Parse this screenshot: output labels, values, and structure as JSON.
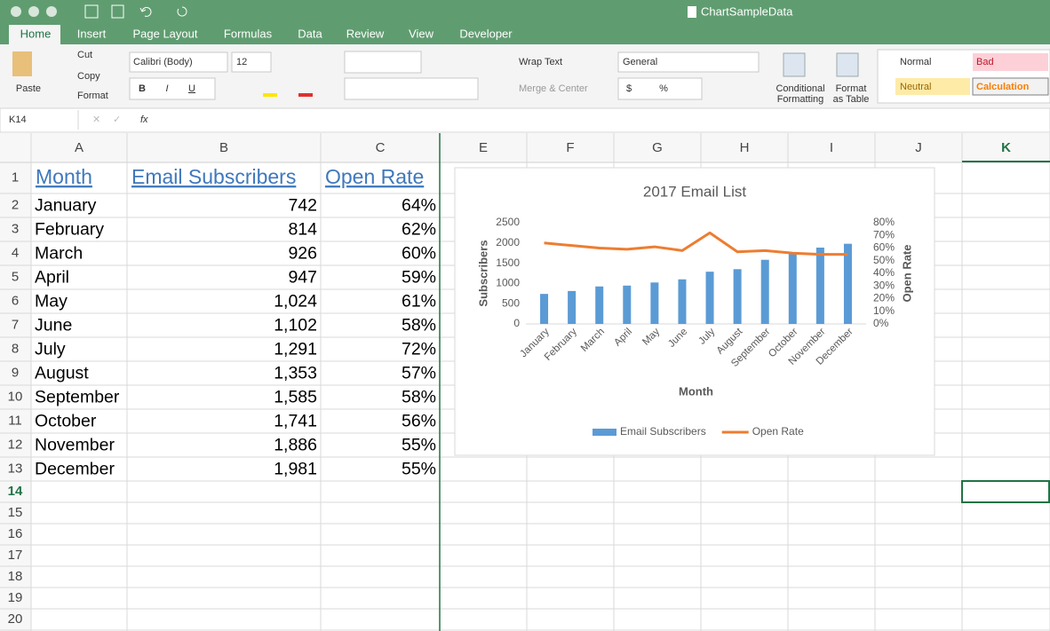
{
  "window": {
    "title": "ChartSampleData"
  },
  "tabs": [
    "Home",
    "Insert",
    "Page Layout",
    "Formulas",
    "Data",
    "Review",
    "View",
    "Developer"
  ],
  "ribbon": {
    "paste": "Paste",
    "cut": "Cut",
    "copy": "Copy",
    "format": "Format",
    "font": "Calibri (Body)",
    "font_size": "12",
    "bold": "B",
    "italic": "I",
    "underline": "U",
    "wrap_text": "Wrap Text",
    "merge_center": "Merge & Center",
    "number_format": "General",
    "currency": "$",
    "percent": "%",
    "conditional_formatting": [
      "Conditional",
      "Formatting"
    ],
    "format_as_table": [
      "Format",
      "as Table"
    ],
    "styles": [
      "Normal",
      "Bad",
      "Neutral",
      "Calculation"
    ]
  },
  "formula_bar": {
    "name_box": "K14",
    "fx": "fx"
  },
  "columns": [
    "A",
    "B",
    "C",
    "E",
    "F",
    "G",
    "H",
    "I",
    "J",
    "K"
  ],
  "rows": [
    1,
    2,
    3,
    4,
    5,
    6,
    7,
    8,
    9,
    10,
    11,
    12,
    13,
    14,
    15,
    16,
    17,
    18,
    19,
    20
  ],
  "table": {
    "header": [
      "Month",
      "Email Subscribers",
      "Open Rate"
    ],
    "rows": [
      [
        "January",
        "742",
        "64%"
      ],
      [
        "February",
        "814",
        "62%"
      ],
      [
        "March",
        "926",
        "60%"
      ],
      [
        "April",
        "947",
        "59%"
      ],
      [
        "May",
        "1,024",
        "61%"
      ],
      [
        "June",
        "1,102",
        "58%"
      ],
      [
        "July",
        "1,291",
        "72%"
      ],
      [
        "August",
        "1,353",
        "57%"
      ],
      [
        "September",
        "1,585",
        "58%"
      ],
      [
        "October",
        "1,741",
        "56%"
      ],
      [
        "November",
        "1,886",
        "55%"
      ],
      [
        "December",
        "1,981",
        "55%"
      ]
    ]
  },
  "chart_data": {
    "type": "bar",
    "title": "2017 Email List",
    "x_label": "Month",
    "y_label": "Subscribers",
    "y2_label": "Open Rate",
    "categories": [
      "January",
      "February",
      "March",
      "April",
      "May",
      "June",
      "July",
      "August",
      "September",
      "October",
      "November",
      "December"
    ],
    "series": [
      {
        "name": "Email Subscribers",
        "color": "#5b9bd5",
        "type": "bar",
        "values": [
          742,
          814,
          926,
          947,
          1024,
          1102,
          1291,
          1353,
          1585,
          1741,
          1886,
          1981
        ]
      },
      {
        "name": "Open Rate",
        "color": "#ed7d31",
        "type": "line",
        "axis": "y2",
        "values": [
          64,
          62,
          60,
          59,
          61,
          58,
          72,
          57,
          58,
          56,
          55,
          55
        ]
      }
    ],
    "ylim": [
      0,
      2500
    ],
    "yticks": [
      0,
      500,
      1000,
      1500,
      2000,
      2500
    ],
    "y2lim": [
      0,
      80
    ],
    "y2ticks": [
      {
        "value": 0,
        "label": "0%"
      },
      {
        "value": 10,
        "label": "10%"
      },
      {
        "value": 20,
        "label": "20%"
      },
      {
        "value": 30,
        "label": "30%"
      },
      {
        "value": 40,
        "label": "40%"
      },
      {
        "value": 50,
        "label": "50%"
      },
      {
        "value": 60,
        "label": "60%"
      },
      {
        "value": 70,
        "label": "70%"
      },
      {
        "value": 80,
        "label": "80%"
      }
    ],
    "grid": false,
    "legend": "bottom"
  }
}
